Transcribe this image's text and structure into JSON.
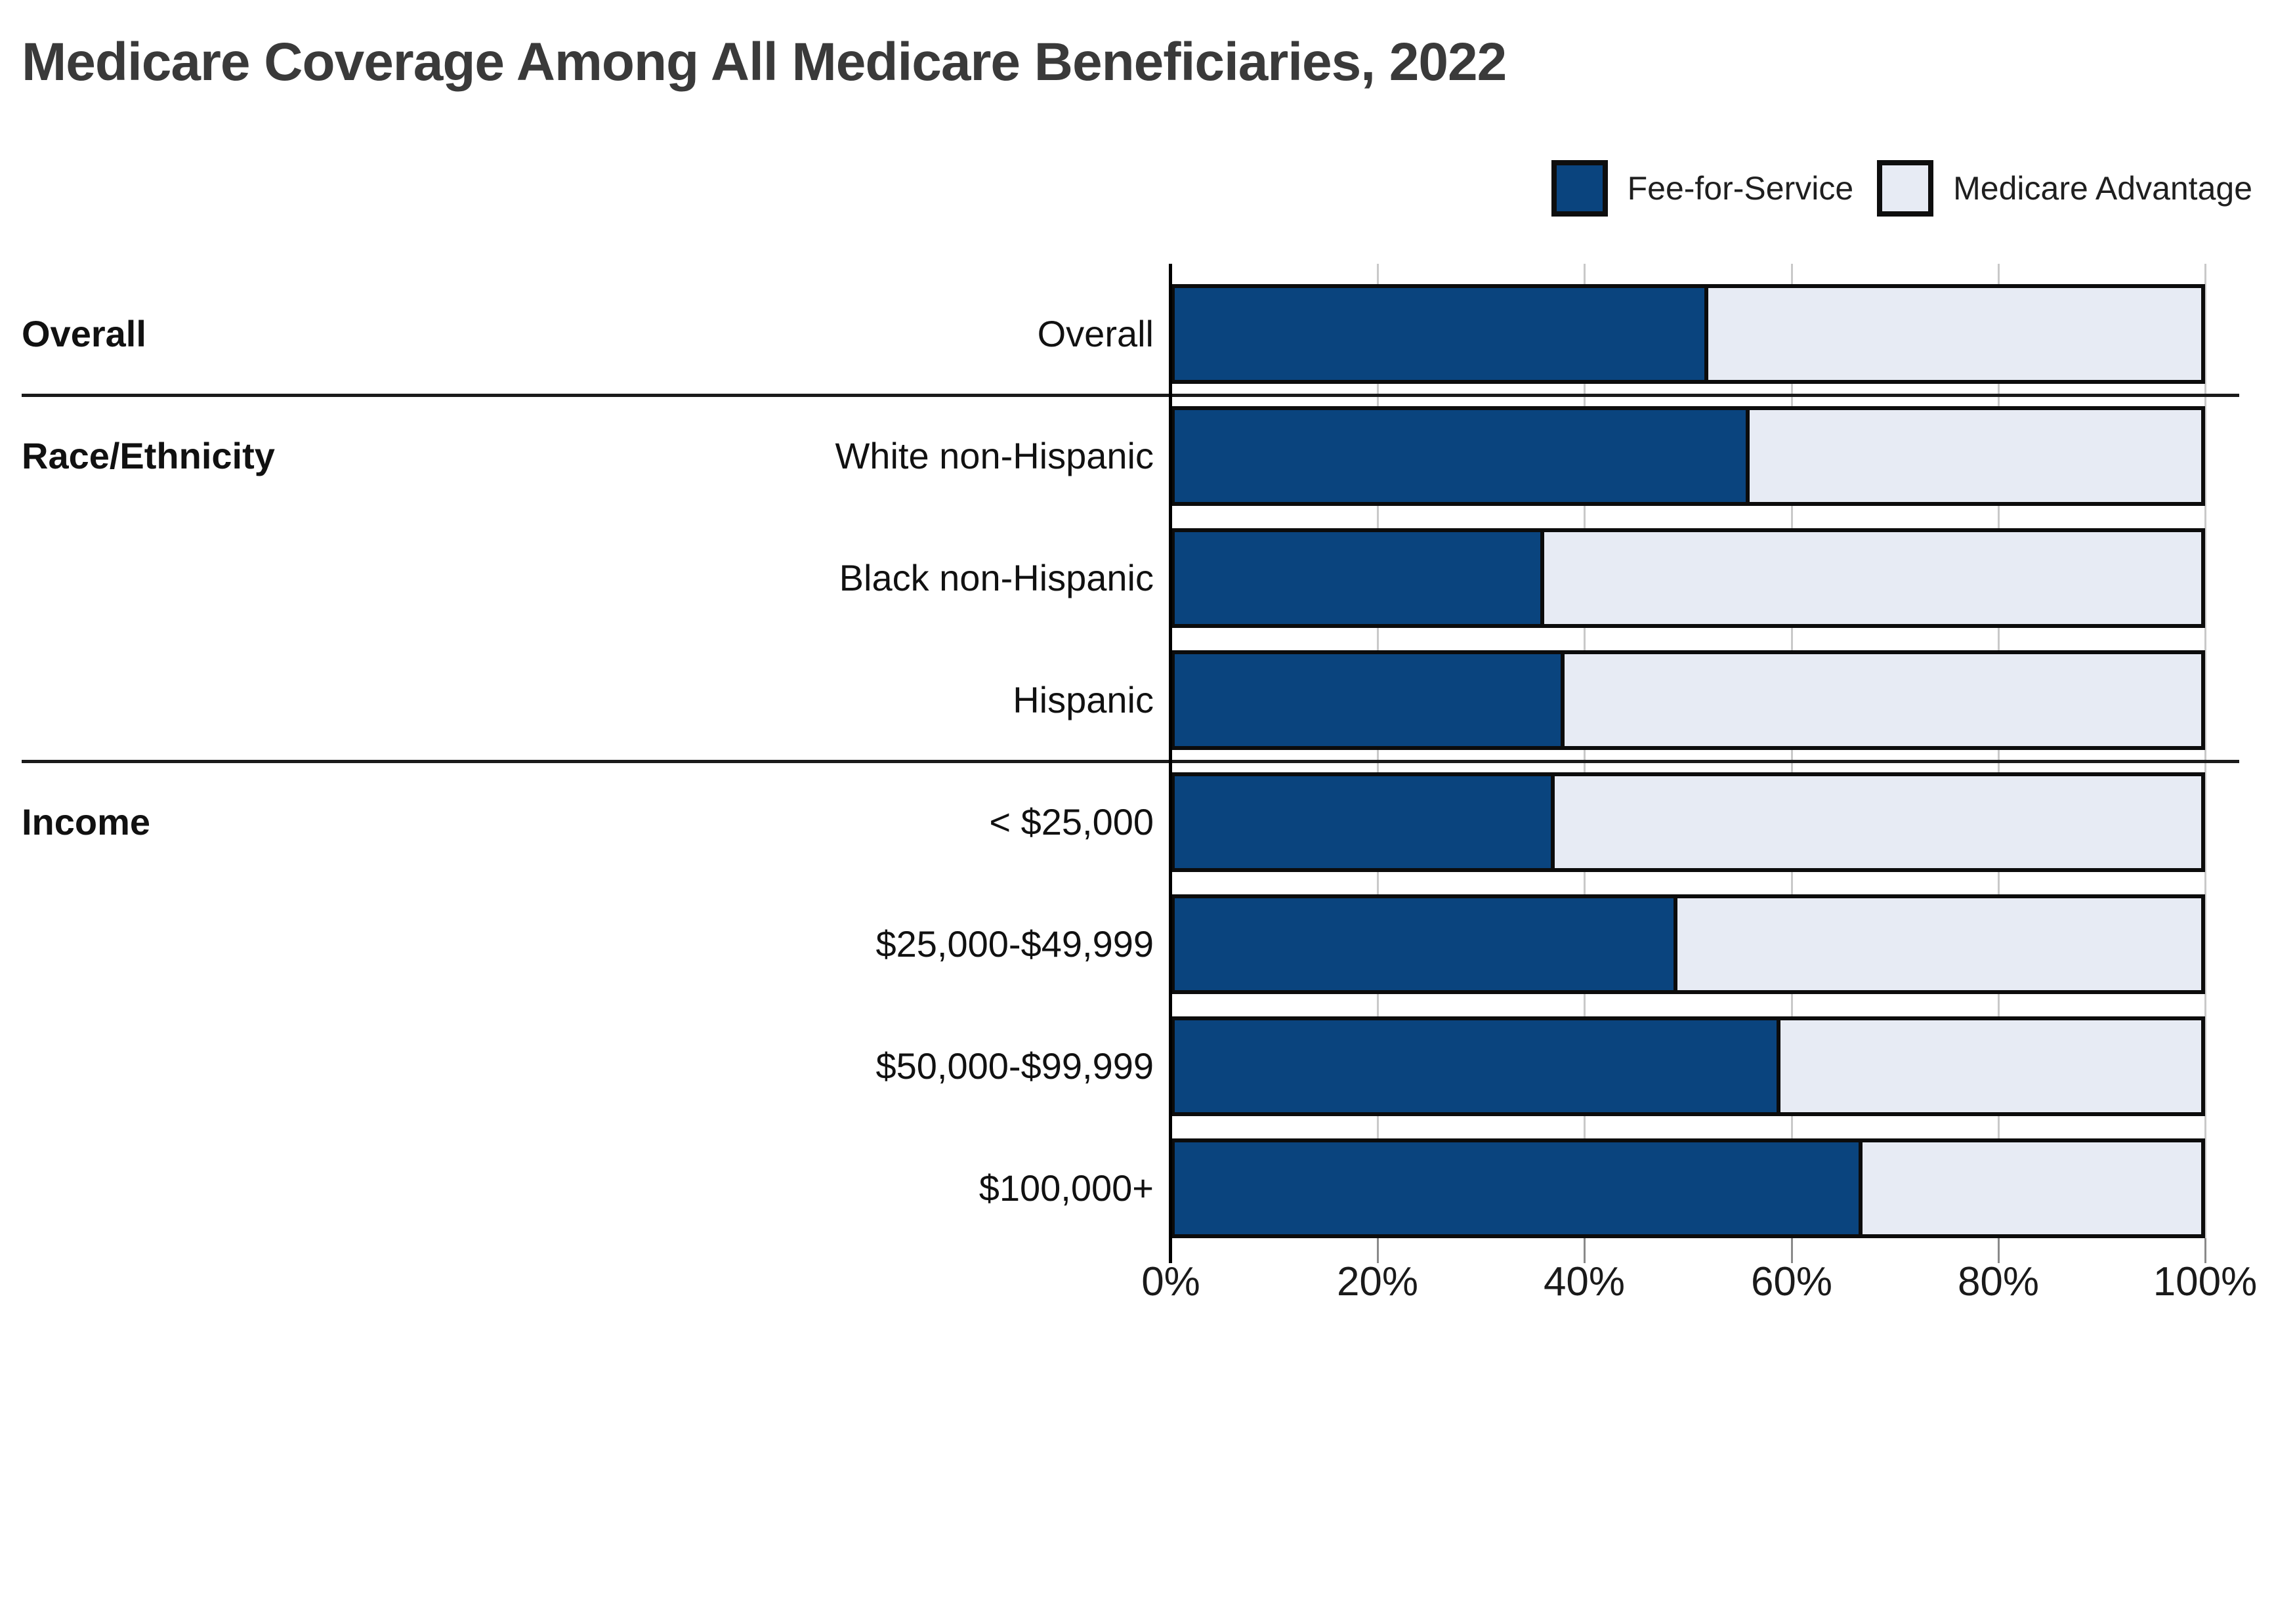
{
  "title": "Medicare Coverage Among All Medicare Beneficiaries, 2022",
  "legend": [
    {
      "label": "Fee-for-Service",
      "color": "#0a447e"
    },
    {
      "label": "Medicare Advantage",
      "color": "#e7ebf4"
    }
  ],
  "colors": {
    "fee_for_service": "#0a447e",
    "medicare_advantage": "#e7ebf4",
    "bar_border": "#0c0c0c",
    "gridline": "#c9c9c9",
    "axis": "#000000",
    "divider": "#1a1a1a",
    "title_text": "#3a3a3a",
    "label_text": "#111111"
  },
  "chart_data": {
    "type": "bar",
    "orientation": "horizontal",
    "stacked": true,
    "unit": "percent",
    "title": "Medicare Coverage Among All Medicare Beneficiaries, 2022",
    "xlabel": "",
    "ylabel": "",
    "xlim": [
      0,
      100
    ],
    "x_ticks": [
      "0%",
      "20%",
      "40%",
      "60%",
      "80%",
      "100%"
    ],
    "grid": true,
    "legend_position": "top-right",
    "categories": [
      "Overall",
      "White non-Hispanic",
      "Black non-Hispanic",
      "Hispanic",
      "< $25,000",
      "$25,000-$49,999",
      "$50,000-$99,999",
      "$100,000+"
    ],
    "sections": [
      {
        "label": "Overall",
        "rows": [
          0
        ]
      },
      {
        "label": "Race/Ethnicity",
        "rows": [
          1,
          2,
          3
        ]
      },
      {
        "label": "Income",
        "rows": [
          4,
          5,
          6,
          7
        ]
      }
    ],
    "series": [
      {
        "name": "Fee-for-Service",
        "color": "#0a447e",
        "values": [
          52,
          56,
          36,
          38,
          37,
          49,
          59,
          67
        ]
      },
      {
        "name": "Medicare Advantage",
        "color": "#e7ebf4",
        "values": [
          48,
          44,
          64,
          62,
          63,
          51,
          41,
          33
        ]
      }
    ]
  }
}
